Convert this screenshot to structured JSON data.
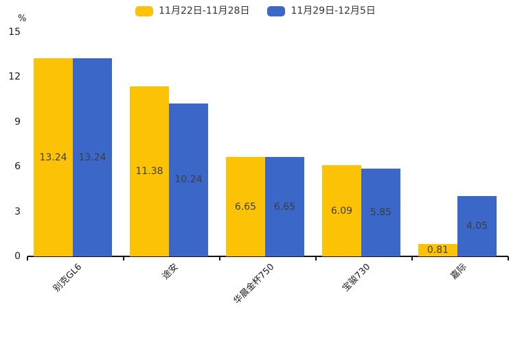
{
  "chart_data": {
    "type": "bar",
    "title": "",
    "categories": [
      "别克GL6",
      "途安",
      "华晨金杯750",
      "宝骏730",
      "嘉际"
    ],
    "series": [
      {
        "name": "11月22日-11月28日",
        "color": "#FCC306",
        "values": [
          13.24,
          11.38,
          6.65,
          6.09,
          0.81
        ]
      },
      {
        "name": "11月29日-12月5日",
        "color": "#3A67C8",
        "values": [
          13.24,
          10.24,
          6.65,
          5.85,
          4.05
        ]
      }
    ],
    "xlabel": "",
    "ylabel": "%",
    "ylim": [
      0,
      15
    ],
    "yticks": [
      0,
      3,
      6,
      9,
      12,
      15
    ],
    "grid": false,
    "legend_position": "top",
    "value_labels": [
      "13.24",
      "11.38",
      "6.65",
      "6.09",
      "0.81",
      "13.24",
      "10.24",
      "6.65",
      "5.85",
      "4.05"
    ],
    "colors": {
      "axis": "#111111",
      "tick_text": "#1a1a1a",
      "bar_label_text": "#3d3d3d",
      "background": "#ffffff"
    }
  }
}
